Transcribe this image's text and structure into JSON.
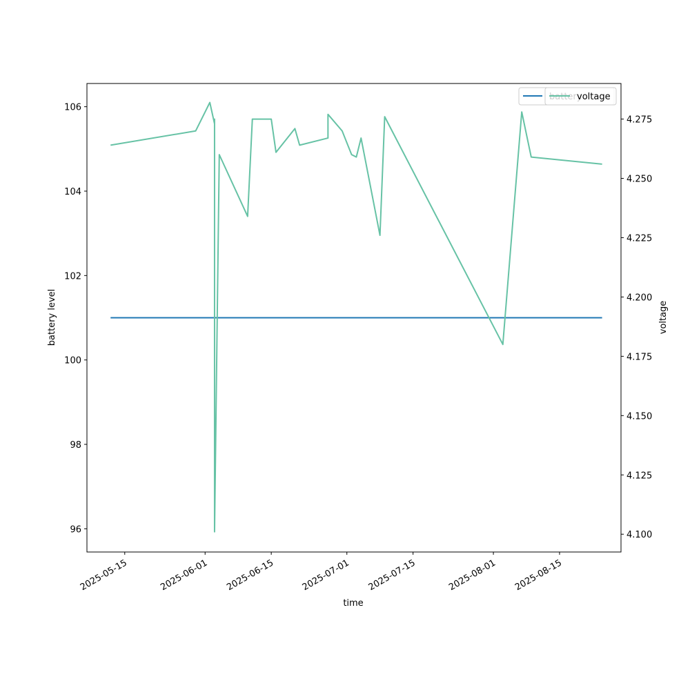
{
  "chart_data": {
    "type": "line",
    "xlabel": "time",
    "ylabel_left": "battery level",
    "ylabel_right": "voltage",
    "x_range": [
      "2025-05-07",
      "2025-08-28"
    ],
    "ylim_left": [
      95.45,
      106.55
    ],
    "ylim_right": [
      4.0925,
      4.29
    ],
    "grid": false,
    "legend_position": "top-right",
    "x_ticks": [
      "2025-05-15",
      "2025-06-01",
      "2025-06-15",
      "2025-07-01",
      "2025-07-15",
      "2025-08-01",
      "2025-08-15"
    ],
    "y_ticks_left": [
      "96",
      "98",
      "100",
      "102",
      "104",
      "106"
    ],
    "y_ticks_right": [
      "4.100",
      "4.125",
      "4.150",
      "4.175",
      "4.200",
      "4.225",
      "4.250",
      "4.275"
    ],
    "series": [
      {
        "name": "battery",
        "axis": "left",
        "color": "#1f77b4",
        "points": [
          [
            "2025-05-12",
            101
          ],
          [
            "2025-08-24",
            101
          ]
        ]
      },
      {
        "name": "voltage",
        "axis": "right",
        "color": "#66c2a5",
        "points": [
          [
            "2025-05-12",
            4.264
          ],
          [
            "2025-05-30",
            4.27
          ],
          [
            "2025-06-01",
            4.278
          ],
          [
            "2025-06-02",
            4.282
          ],
          [
            "2025-06-03",
            4.273
          ],
          [
            "2025-06-03",
            4.275
          ],
          [
            "2025-06-03",
            4.272
          ],
          [
            "2025-06-03",
            4.101
          ],
          [
            "2025-06-04",
            4.26
          ],
          [
            "2025-06-10",
            4.234
          ],
          [
            "2025-06-11",
            4.275
          ],
          [
            "2025-06-15",
            4.275
          ],
          [
            "2025-06-16",
            4.261
          ],
          [
            "2025-06-20",
            4.271
          ],
          [
            "2025-06-21",
            4.264
          ],
          [
            "2025-06-27",
            4.267
          ],
          [
            "2025-06-27",
            4.277
          ],
          [
            "2025-06-30",
            4.27
          ],
          [
            "2025-07-01",
            4.265
          ],
          [
            "2025-07-02",
            4.26
          ],
          [
            "2025-07-03",
            4.259
          ],
          [
            "2025-07-04",
            4.267
          ],
          [
            "2025-07-08",
            4.226
          ],
          [
            "2025-07-09",
            4.276
          ],
          [
            "2025-08-03",
            4.18
          ],
          [
            "2025-08-07",
            4.278
          ],
          [
            "2025-08-09",
            4.259
          ],
          [
            "2025-08-24",
            4.256
          ]
        ]
      }
    ],
    "legends": [
      {
        "entries": [
          {
            "label": "battery",
            "color": "#1f77b4"
          }
        ]
      },
      {
        "entries": [
          {
            "label": "voltage",
            "color": "#66c2a5"
          }
        ]
      }
    ]
  }
}
